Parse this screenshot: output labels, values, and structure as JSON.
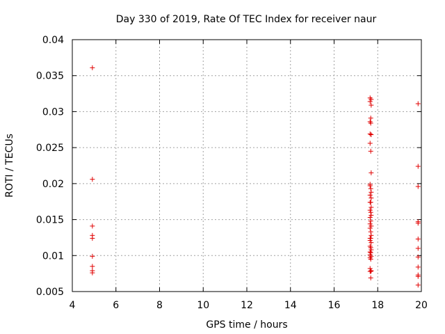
{
  "chart_data": {
    "type": "scatter",
    "title": "Day 330 of 2019, Rate Of TEC Index for receiver naur",
    "xlabel": "GPS time / hours",
    "ylabel": "ROTI / TECUs",
    "xlim": [
      4,
      20
    ],
    "ylim": [
      0.005,
      0.04
    ],
    "xticks": [
      "4",
      "6",
      "8",
      "10",
      "12",
      "14",
      "16",
      "18",
      "20"
    ],
    "yticks": [
      "0.005",
      "0.01",
      "0.015",
      "0.02",
      "0.025",
      "0.03",
      "0.035",
      "0.04"
    ],
    "grid": true,
    "marker": "+",
    "color": "#e00000",
    "series": [
      {
        "x": [
          4.92,
          4.92,
          4.92,
          4.92,
          4.92,
          4.92,
          4.92,
          4.92,
          4.92,
          17.65,
          17.7,
          17.65,
          17.7,
          17.68,
          17.65,
          17.68,
          17.65,
          17.7,
          17.65,
          17.68,
          17.7,
          17.65,
          17.65,
          17.68,
          17.7,
          17.65,
          17.7,
          17.68,
          17.65,
          17.7,
          17.65,
          17.68,
          17.7,
          17.65,
          17.68,
          17.65,
          17.7,
          17.65,
          17.68,
          17.7,
          17.65,
          17.68,
          17.65,
          17.7,
          17.65,
          17.68,
          17.7,
          17.65,
          17.68,
          17.65,
          17.7,
          17.65,
          17.68,
          17.65,
          17.7,
          17.68,
          17.65,
          17.68,
          19.85,
          19.85,
          19.85,
          19.85,
          19.85,
          19.85,
          19.85,
          19.85,
          19.85,
          19.85,
          19.85,
          19.85
        ],
        "y": [
          0.0361,
          0.0206,
          0.0141,
          0.0128,
          0.0124,
          0.0099,
          0.0085,
          0.0079,
          0.0076,
          0.0319,
          0.0317,
          0.0314,
          0.0309,
          0.0291,
          0.0286,
          0.0284,
          0.0269,
          0.0268,
          0.0256,
          0.0245,
          0.0215,
          0.0199,
          0.0197,
          0.0193,
          0.0188,
          0.0184,
          0.018,
          0.0174,
          0.0174,
          0.0167,
          0.0163,
          0.016,
          0.0156,
          0.0153,
          0.0148,
          0.0144,
          0.0141,
          0.0138,
          0.0133,
          0.0128,
          0.0124,
          0.0124,
          0.0121,
          0.0118,
          0.0113,
          0.0111,
          0.0108,
          0.0105,
          0.0104,
          0.0101,
          0.0099,
          0.0097,
          0.0095,
          0.0082,
          0.0079,
          0.0078,
          0.0078,
          0.0069,
          0.0311,
          0.0224,
          0.0196,
          0.0147,
          0.0145,
          0.0123,
          0.011,
          0.0098,
          0.0084,
          0.0073,
          0.0071,
          0.0059
        ]
      }
    ]
  }
}
